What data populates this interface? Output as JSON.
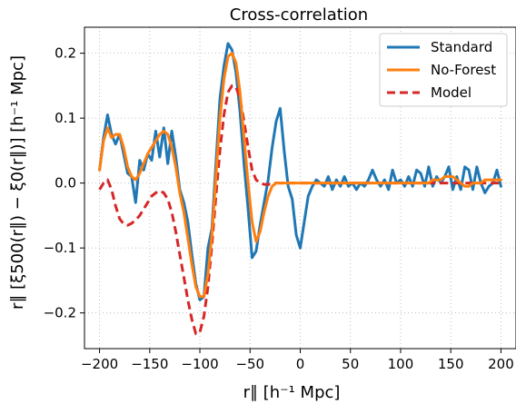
{
  "chart_data": {
    "type": "line",
    "title": "Cross-correlation",
    "xlabel": "r∥ [h⁻¹ Mpc]",
    "ylabel": "r∥ [ξ500(r∥) − ξ0(r∥)] [h⁻¹ Mpc]",
    "xlim": [
      -215,
      215
    ],
    "ylim": [
      -0.255,
      0.24
    ],
    "xticks": [
      -200,
      -150,
      -100,
      -50,
      0,
      50,
      100,
      150,
      200
    ],
    "xtick_labels": [
      "−200",
      "−150",
      "−100",
      "−50",
      "0",
      "50",
      "100",
      "150",
      "200"
    ],
    "yticks": [
      -0.2,
      -0.1,
      0.0,
      0.1,
      0.2
    ],
    "ytick_labels": [
      "−0.2",
      "−0.1",
      "0.0",
      "0.1",
      "0.2"
    ],
    "grid": true,
    "legend": "top-right",
    "series": [
      {
        "name": "Standard",
        "color": "#1f77b4",
        "style": "solid",
        "x": [
          -200,
          -196,
          -192,
          -188,
          -184,
          -180,
          -176,
          -172,
          -168,
          -164,
          -160,
          -156,
          -152,
          -148,
          -144,
          -140,
          -136,
          -132,
          -128,
          -124,
          -120,
          -116,
          -112,
          -108,
          -104,
          -100,
          -96,
          -92,
          -88,
          -84,
          -80,
          -76,
          -72,
          -68,
          -64,
          -60,
          -56,
          -52,
          -48,
          -44,
          -40,
          -36,
          -32,
          -28,
          -24,
          -20,
          -16,
          -12,
          -8,
          -4,
          0,
          4,
          8,
          12,
          16,
          20,
          24,
          28,
          32,
          36,
          40,
          44,
          48,
          52,
          56,
          60,
          64,
          68,
          72,
          76,
          80,
          84,
          88,
          92,
          96,
          100,
          104,
          108,
          112,
          116,
          120,
          124,
          128,
          132,
          136,
          140,
          144,
          148,
          152,
          156,
          160,
          164,
          168,
          172,
          176,
          180,
          184,
          188,
          192,
          196,
          200
        ],
        "y": [
          0.02,
          0.07,
          0.105,
          0.075,
          0.06,
          0.075,
          0.045,
          0.015,
          0.01,
          -0.03,
          0.035,
          0.02,
          0.045,
          0.035,
          0.08,
          0.04,
          0.085,
          0.03,
          0.08,
          0.04,
          -0.01,
          -0.03,
          -0.06,
          -0.11,
          -0.155,
          -0.18,
          -0.175,
          -0.1,
          -0.07,
          0.03,
          0.13,
          0.18,
          0.215,
          0.205,
          0.17,
          0.11,
          0.03,
          -0.04,
          -0.115,
          -0.105,
          -0.065,
          -0.03,
          0.005,
          0.055,
          0.095,
          0.115,
          0.05,
          -0.005,
          -0.025,
          -0.08,
          -0.1,
          -0.06,
          -0.02,
          -0.005,
          0.005,
          0.0,
          -0.005,
          0.01,
          -0.01,
          0.005,
          -0.005,
          0.01,
          -0.005,
          0.0,
          -0.01,
          0.0,
          -0.005,
          0.005,
          0.02,
          0.005,
          -0.005,
          0.005,
          -0.01,
          0.02,
          0.0,
          0.005,
          -0.005,
          0.01,
          -0.005,
          0.02,
          0.015,
          -0.005,
          0.025,
          -0.005,
          0.01,
          0.0,
          0.01,
          0.025,
          -0.01,
          0.01,
          -0.01,
          0.025,
          0.02,
          -0.01,
          0.025,
          0.0,
          -0.015,
          -0.005,
          0.0,
          0.02,
          -0.005
        ]
      },
      {
        "name": "No-Forest",
        "color": "#ff7f0e",
        "style": "solid",
        "x": [
          -200,
          -196,
          -192,
          -188,
          -184,
          -180,
          -176,
          -172,
          -168,
          -164,
          -160,
          -156,
          -152,
          -148,
          -144,
          -140,
          -136,
          -132,
          -128,
          -124,
          -120,
          -116,
          -112,
          -108,
          -104,
          -100,
          -96,
          -92,
          -88,
          -84,
          -80,
          -76,
          -72,
          -68,
          -64,
          -60,
          -56,
          -52,
          -48,
          -44,
          -40,
          -36,
          -32,
          -28,
          -24,
          -20,
          -16,
          -12,
          -8,
          -4,
          0,
          4,
          8,
          12,
          16,
          20,
          24,
          28,
          32,
          36,
          40,
          44,
          48,
          52,
          56,
          60,
          64,
          68,
          72,
          76,
          80,
          84,
          88,
          92,
          96,
          100,
          104,
          108,
          112,
          116,
          120,
          124,
          128,
          132,
          136,
          140,
          144,
          148,
          152,
          156,
          160,
          164,
          168,
          172,
          176,
          180,
          184,
          188,
          192,
          196,
          200
        ],
        "y": [
          0.02,
          0.065,
          0.085,
          0.07,
          0.075,
          0.075,
          0.055,
          0.025,
          0.01,
          0.005,
          0.015,
          0.03,
          0.045,
          0.055,
          0.065,
          0.075,
          0.08,
          0.075,
          0.055,
          0.025,
          -0.015,
          -0.045,
          -0.085,
          -0.125,
          -0.16,
          -0.175,
          -0.175,
          -0.14,
          -0.08,
          0.01,
          0.1,
          0.16,
          0.195,
          0.2,
          0.185,
          0.14,
          0.07,
          0.0,
          -0.06,
          -0.09,
          -0.075,
          -0.045,
          -0.02,
          -0.005,
          0.0,
          0.0,
          0.0,
          0.0,
          0.0,
          0.0,
          0.0,
          0.0,
          0.0,
          0.0,
          0.0,
          0.0,
          0.0,
          0.0,
          0.0,
          0.0,
          0.0,
          0.0,
          0.0,
          0.0,
          0.0,
          0.0,
          0.0,
          0.0,
          0.0,
          0.0,
          0.0,
          0.0,
          0.0,
          0.0,
          0.0,
          0.0,
          0.0,
          0.0,
          0.0,
          0.0,
          0.0,
          0.0,
          0.0,
          0.005,
          0.005,
          0.005,
          0.01,
          0.01,
          0.01,
          0.005,
          0.0,
          -0.005,
          -0.005,
          0.0,
          0.0,
          0.0,
          0.005,
          0.005,
          0.005,
          0.005,
          0.005
        ]
      },
      {
        "name": "Model",
        "color": "#d62728",
        "style": "dashed",
        "x": [
          -200,
          -196,
          -192,
          -188,
          -184,
          -180,
          -176,
          -172,
          -168,
          -164,
          -160,
          -156,
          -152,
          -148,
          -144,
          -140,
          -136,
          -132,
          -128,
          -124,
          -120,
          -116,
          -112,
          -108,
          -104,
          -100,
          -96,
          -92,
          -88,
          -84,
          -80,
          -76,
          -72,
          -68,
          -64,
          -60,
          -56,
          -52,
          -48,
          -44,
          -40,
          -36,
          -32,
          -28,
          -24,
          -20,
          -16,
          -12,
          -8,
          -4,
          0,
          4,
          8,
          12,
          16,
          20,
          24,
          28,
          32,
          36,
          40,
          44,
          48,
          52,
          56,
          60,
          64,
          68,
          72,
          76,
          80,
          84,
          88,
          92,
          96,
          100,
          104,
          108,
          112,
          116,
          120,
          124,
          128,
          132,
          136,
          140,
          144,
          148,
          152,
          156,
          160,
          164,
          168,
          172,
          176,
          180,
          184,
          188,
          192,
          196,
          200
        ],
        "y": [
          -0.01,
          0.0,
          0.005,
          -0.01,
          -0.035,
          -0.055,
          -0.063,
          -0.065,
          -0.062,
          -0.057,
          -0.05,
          -0.04,
          -0.03,
          -0.02,
          -0.015,
          -0.012,
          -0.015,
          -0.025,
          -0.045,
          -0.075,
          -0.11,
          -0.145,
          -0.18,
          -0.21,
          -0.232,
          -0.23,
          -0.205,
          -0.16,
          -0.095,
          -0.02,
          0.05,
          0.105,
          0.14,
          0.15,
          0.148,
          0.13,
          0.095,
          0.055,
          0.02,
          0.005,
          0.0,
          -0.002,
          -0.002,
          -0.001,
          0.0,
          0.0,
          0.0,
          0.0,
          0.0,
          0.0,
          0.0,
          0.0,
          0.0,
          0.0,
          0.0,
          0.0,
          0.0,
          0.0,
          0.0,
          0.0,
          0.0,
          0.0,
          0.0,
          0.0,
          0.0,
          0.0,
          0.0,
          0.0,
          0.0,
          0.0,
          0.0,
          0.0,
          0.0,
          0.0,
          0.0,
          0.0,
          0.0,
          0.0,
          0.0,
          0.0,
          0.0,
          0.0,
          0.0,
          0.0,
          0.0,
          0.0,
          0.0,
          0.0,
          0.0,
          0.0,
          0.0,
          0.0,
          0.0,
          0.0,
          0.0,
          0.0,
          0.0,
          0.0,
          0.0,
          0.0,
          0.0
        ]
      }
    ]
  }
}
